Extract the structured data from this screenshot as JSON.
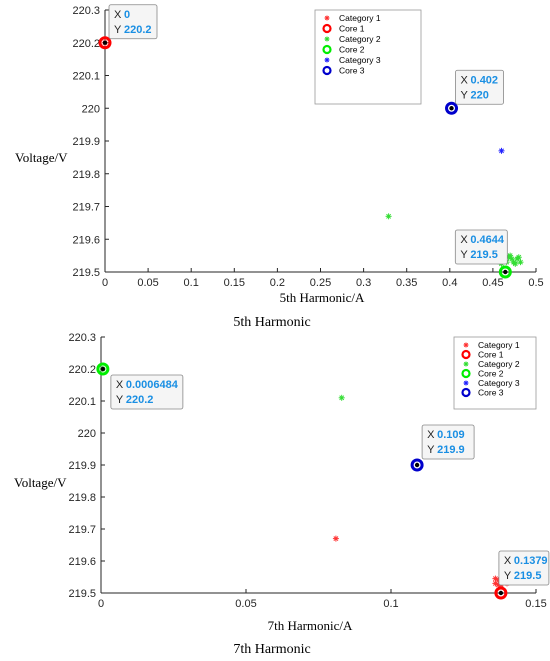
{
  "chart_data": [
    {
      "type": "scatter",
      "caption": "5th Harmonic",
      "xlabel": "5th Harmonic/A",
      "ylabel": "Voltage/V",
      "xlim": [
        0,
        0.5
      ],
      "ylim": [
        219.5,
        220.3
      ],
      "xticks": [
        "0",
        "0.05",
        "0.1",
        "0.15",
        "0.2",
        "0.25",
        "0.3",
        "0.35",
        "0.4",
        "0.45",
        "0.5"
      ],
      "yticks": [
        "219.5",
        "219.6",
        "219.7",
        "219.8",
        "219.9",
        "220",
        "220.1",
        "220.2",
        "220.3"
      ],
      "legend_position": "top-center",
      "series": [
        {
          "name": "Category 1",
          "marker": "*",
          "color": "#ff3333",
          "points": [
            [
              0.0,
              220.2
            ]
          ]
        },
        {
          "name": "Core 1",
          "marker": "o",
          "color": "#ff0000",
          "points": [
            [
              0.0,
              220.2
            ]
          ]
        },
        {
          "name": "Category 2",
          "marker": "*",
          "color": "#33dd33",
          "points": [
            [
              0.329,
              219.67
            ],
            [
              0.458,
              219.53
            ],
            [
              0.462,
              219.54
            ],
            [
              0.466,
              219.53
            ],
            [
              0.47,
              219.55
            ],
            [
              0.474,
              219.53
            ],
            [
              0.478,
              219.54
            ],
            [
              0.482,
              219.53
            ],
            [
              0.46,
              219.525
            ],
            [
              0.468,
              219.545
            ],
            [
              0.476,
              219.525
            ],
            [
              0.48,
              219.545
            ],
            [
              0.464,
              219.535
            ],
            [
              0.472,
              219.54
            ]
          ]
        },
        {
          "name": "Core 2",
          "marker": "o",
          "color": "#00ee00",
          "points": [
            [
              0.4644,
              219.5
            ]
          ]
        },
        {
          "name": "Category 3",
          "marker": "*",
          "color": "#2222ff",
          "points": [
            [
              0.345,
              220.11
            ],
            [
              0.46,
              219.87
            ]
          ]
        },
        {
          "name": "Core 3",
          "marker": "o",
          "color": "#0000cc",
          "points": [
            [
              0.402,
              220.0
            ]
          ]
        }
      ],
      "datatips": [
        {
          "x_label": "X",
          "x_value": "0",
          "y_label": "Y",
          "y_value": "220.2",
          "at": [
            0.0,
            220.2
          ]
        },
        {
          "x_label": "X",
          "x_value": "0.402",
          "y_label": "Y",
          "y_value": "220",
          "at": [
            0.402,
            220.0
          ]
        },
        {
          "x_label": "X",
          "x_value": "0.4644",
          "y_label": "Y",
          "y_value": "219.5",
          "at": [
            0.4644,
            219.5
          ]
        }
      ]
    },
    {
      "type": "scatter",
      "caption": "7th Harmonic",
      "xlabel": "7th Harmonic/A",
      "ylabel": "Voltage/V",
      "xlim": [
        0,
        0.15
      ],
      "ylim": [
        219.5,
        220.3
      ],
      "xticks": [
        "0",
        "0.05",
        "0.1",
        "0.15"
      ],
      "yticks": [
        "219.5",
        "219.6",
        "219.7",
        "219.8",
        "219.9",
        "220",
        "220.1",
        "220.2",
        "220.3"
      ],
      "legend_position": "top-right",
      "series": [
        {
          "name": "Category 1",
          "marker": "*",
          "color": "#ff3333",
          "points": [
            [
              0.081,
              219.67
            ],
            [
              0.136,
              219.53
            ],
            [
              0.137,
              219.54
            ],
            [
              0.138,
              219.53
            ],
            [
              0.139,
              219.54
            ],
            [
              0.14,
              219.53
            ],
            [
              0.136,
              219.545
            ],
            [
              0.138,
              219.525
            ],
            [
              0.14,
              219.545
            ],
            [
              0.137,
              219.525
            ],
            [
              0.139,
              219.535
            ]
          ]
        },
        {
          "name": "Core 1",
          "marker": "o",
          "color": "#ff0000",
          "points": [
            [
              0.1379,
              219.5
            ]
          ]
        },
        {
          "name": "Category 2",
          "marker": "*",
          "color": "#33dd33",
          "points": [
            [
              0.0006484,
              220.2
            ],
            [
              0.083,
              220.11
            ]
          ]
        },
        {
          "name": "Core 2",
          "marker": "o",
          "color": "#00ee00",
          "points": [
            [
              0.0006484,
              220.2
            ]
          ]
        },
        {
          "name": "Category 3",
          "marker": "*",
          "color": "#2222ff",
          "points": []
        },
        {
          "name": "Core 3",
          "marker": "o",
          "color": "#0000cc",
          "points": [
            [
              0.109,
              219.9
            ]
          ]
        }
      ],
      "datatips": [
        {
          "x_label": "X",
          "x_value": "0.0006484",
          "y_label": "Y",
          "y_value": "220.2",
          "at": [
            0.0006484,
            220.2
          ]
        },
        {
          "x_label": "X",
          "x_value": "0.109",
          "y_label": "Y",
          "y_value": "219.9",
          "at": [
            0.109,
            219.9
          ]
        },
        {
          "x_label": "X",
          "x_value": "0.1379",
          "y_label": "Y",
          "y_value": "219.5",
          "at": [
            0.1379,
            219.5
          ]
        }
      ]
    }
  ]
}
